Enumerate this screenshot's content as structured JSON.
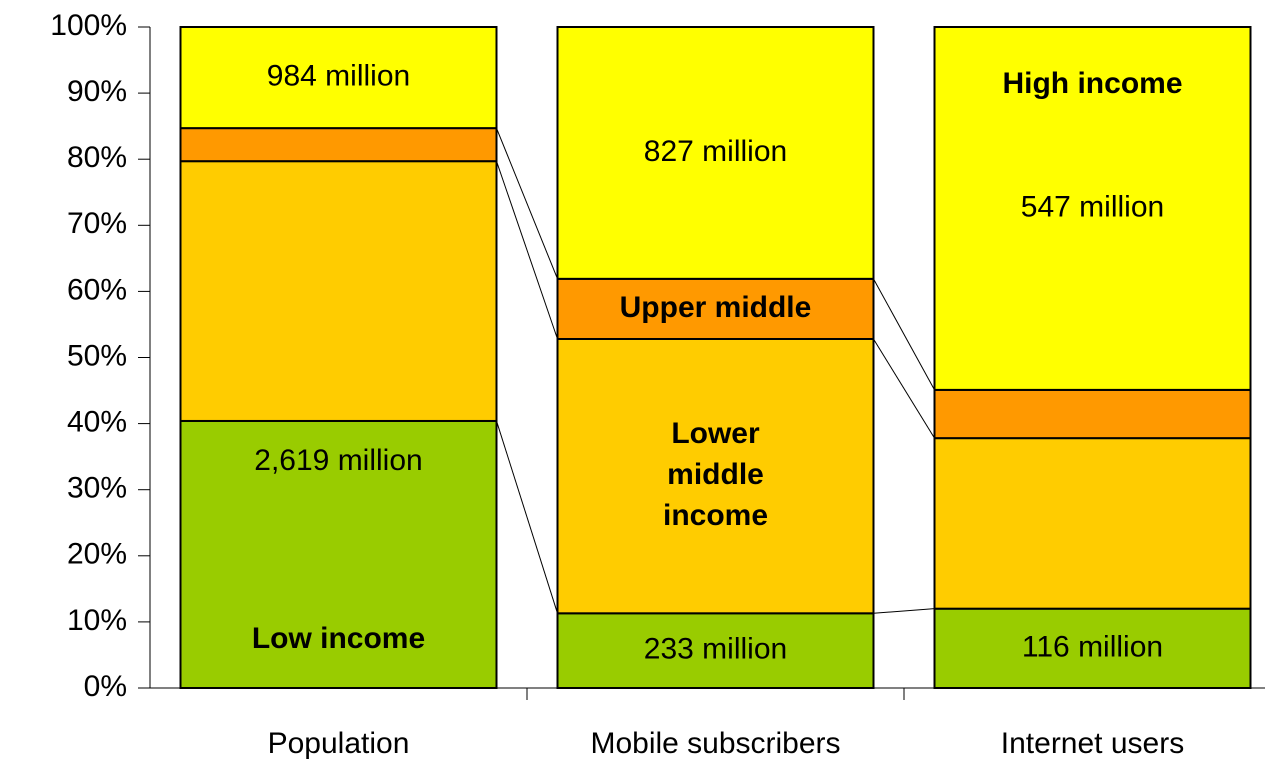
{
  "chart_data": {
    "type": "stacked_bar_100",
    "categories": [
      "Population",
      "Mobile subscribers",
      "Internet users"
    ],
    "series": [
      {
        "name": "Low income",
        "color": "#99cc00",
        "values": [
          40.4,
          11.3,
          12.0
        ],
        "labels": [
          "2,619 million",
          "233 million",
          "116 million"
        ]
      },
      {
        "name": "Lower middle income",
        "color": "#ffcc00",
        "values": [
          39.3,
          41.5,
          25.8
        ]
      },
      {
        "name": "Upper middle",
        "color": "#ff9900",
        "values": [
          5.0,
          9.1,
          7.3
        ]
      },
      {
        "name": "High income",
        "color": "#ffff00",
        "values": [
          15.3,
          38.1,
          54.9
        ],
        "labels": [
          "984 million",
          "827 million",
          "547 million"
        ]
      }
    ],
    "ylim": [
      0,
      100
    ],
    "yticks": [
      {
        "value": 0,
        "label": "0%"
      },
      {
        "value": 10,
        "label": "10%"
      },
      {
        "value": 20,
        "label": "20%"
      },
      {
        "value": 30,
        "label": "30%"
      },
      {
        "value": 40,
        "label": "40%"
      },
      {
        "value": 50,
        "label": "50%"
      },
      {
        "value": 60,
        "label": "60%"
      },
      {
        "value": 70,
        "label": "70%"
      },
      {
        "value": 80,
        "label": "80%"
      },
      {
        "value": 90,
        "label": "90%"
      },
      {
        "value": 100,
        "label": "100%"
      }
    ]
  }
}
